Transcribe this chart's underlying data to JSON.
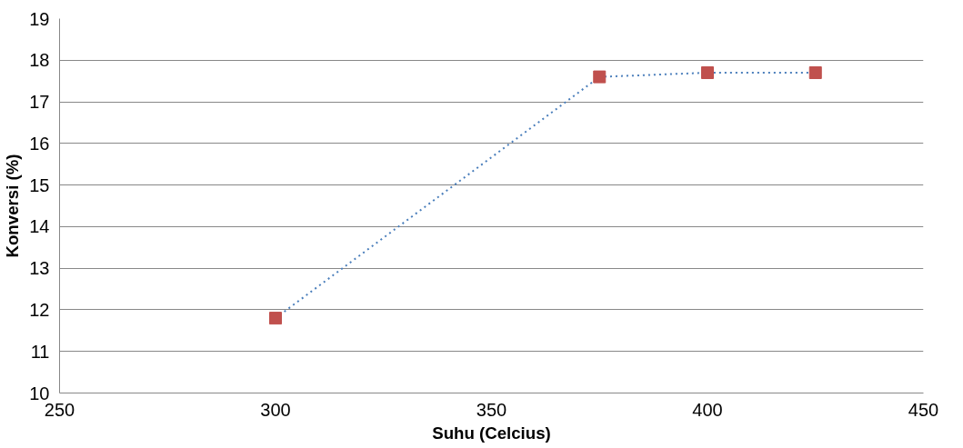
{
  "chart_data": {
    "type": "line",
    "xlabel": "Suhu (Celcius)",
    "ylabel": "Konversi (%)",
    "x": [
      300,
      375,
      400,
      425
    ],
    "series": [
      {
        "color": "#4a7ebb",
        "colors": [
          "#c0504d",
          "#c0504d",
          "#c0504d",
          "#c0504d"
        ],
        "values": [
          11.8,
          17.6,
          17.7,
          17.7
        ]
      }
    ],
    "xlim": [
      250,
      450
    ],
    "xticks": [
      250,
      300,
      350,
      400,
      450
    ],
    "ylim": [
      10,
      19
    ],
    "yticks": [
      10,
      11,
      12,
      13,
      14,
      15,
      16,
      17,
      18,
      19
    ],
    "grid": "y",
    "marker": "square",
    "line_style": "dotted"
  }
}
